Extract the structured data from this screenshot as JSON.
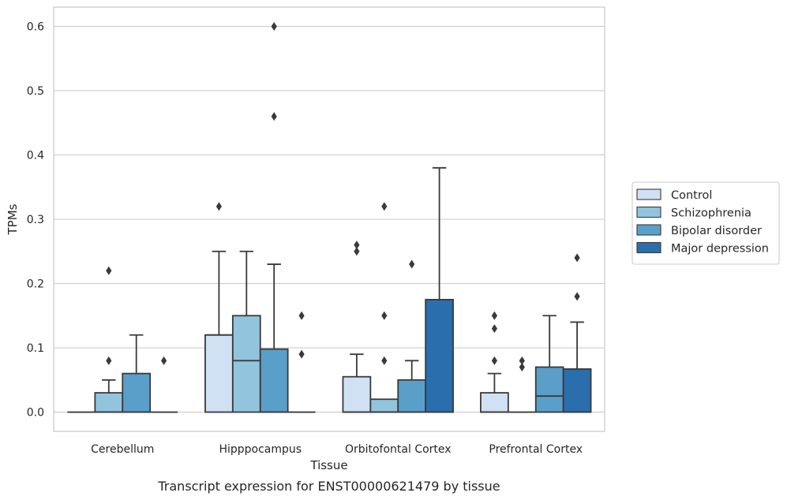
{
  "caption": "Transcript expression for ENST00000621479 by tissue",
  "chart_data": {
    "type": "box",
    "title": "",
    "xlabel": "Tissue",
    "ylabel": "TPMs",
    "ylim": [
      -0.03,
      0.63
    ],
    "yticks": [
      0.0,
      0.1,
      0.2,
      0.3,
      0.4,
      0.5,
      0.6
    ],
    "ytick_labels": [
      "0.0",
      "0.1",
      "0.2",
      "0.3",
      "0.4",
      "0.5",
      "0.6"
    ],
    "grid": "horizontal",
    "legend_position": "right",
    "categories": [
      "Cerebellum",
      "Hipppocampus",
      "Orbitofontal Cortex",
      "Prefrontal Cortex"
    ],
    "series": [
      {
        "name": "Control",
        "color": "#cfe1f2",
        "boxes": [
          {
            "q1": 0,
            "median": 0,
            "q3": 0,
            "whisker_low": 0,
            "whisker_high": 0,
            "outliers": []
          },
          {
            "q1": 0,
            "median": 0.12,
            "q3": 0.12,
            "whisker_low": 0,
            "whisker_high": 0.25,
            "outliers": [
              0.32
            ]
          },
          {
            "q1": 0,
            "median": 0,
            "q3": 0.055,
            "whisker_low": 0,
            "whisker_high": 0.09,
            "outliers": [
              0.25,
              0.26
            ]
          },
          {
            "q1": 0,
            "median": 0,
            "q3": 0.03,
            "whisker_low": 0,
            "whisker_high": 0.06,
            "outliers": [
              0.08,
              0.13,
              0.15
            ]
          }
        ]
      },
      {
        "name": "Schizophrenia",
        "color": "#93c4de",
        "boxes": [
          {
            "q1": 0,
            "median": 0,
            "q3": 0.03,
            "whisker_low": 0,
            "whisker_high": 0.05,
            "outliers": [
              0.08,
              0.22
            ]
          },
          {
            "q1": 0,
            "median": 0.08,
            "q3": 0.15,
            "whisker_low": 0,
            "whisker_high": 0.25,
            "outliers": []
          },
          {
            "q1": 0,
            "median": 0,
            "q3": 0.02,
            "whisker_low": 0,
            "whisker_high": 0.02,
            "outliers": [
              0.08,
              0.15,
              0.32
            ]
          },
          {
            "q1": 0,
            "median": 0,
            "q3": 0,
            "whisker_low": 0,
            "whisker_high": 0,
            "outliers": [
              0.07,
              0.08
            ]
          }
        ]
      },
      {
        "name": "Bipolar disorder",
        "color": "#5a9fca",
        "boxes": [
          {
            "q1": 0,
            "median": 0,
            "q3": 0.06,
            "whisker_low": 0,
            "whisker_high": 0.12,
            "outliers": []
          },
          {
            "q1": 0,
            "median": 0,
            "q3": 0.098,
            "whisker_low": 0,
            "whisker_high": 0.23,
            "outliers": [
              0.46,
              0.6
            ]
          },
          {
            "q1": 0,
            "median": 0,
            "q3": 0.05,
            "whisker_low": 0,
            "whisker_high": 0.08,
            "outliers": [
              0.23
            ]
          },
          {
            "q1": 0,
            "median": 0.025,
            "q3": 0.07,
            "whisker_low": 0,
            "whisker_high": 0.15,
            "outliers": []
          }
        ]
      },
      {
        "name": "Major depression",
        "color": "#2a6ead",
        "boxes": [
          {
            "q1": 0,
            "median": 0,
            "q3": 0,
            "whisker_low": 0,
            "whisker_high": 0,
            "outliers": [
              0.08
            ]
          },
          {
            "q1": 0,
            "median": 0,
            "q3": 0,
            "whisker_low": 0,
            "whisker_high": 0,
            "outliers": [
              0.09,
              0.15
            ]
          },
          {
            "q1": 0,
            "median": 0,
            "q3": 0.175,
            "whisker_low": 0,
            "whisker_high": 0.38,
            "outliers": []
          },
          {
            "q1": 0,
            "median": 0,
            "q3": 0.067,
            "whisker_low": 0,
            "whisker_high": 0.14,
            "outliers": [
              0.18,
              0.24
            ]
          }
        ]
      }
    ]
  }
}
